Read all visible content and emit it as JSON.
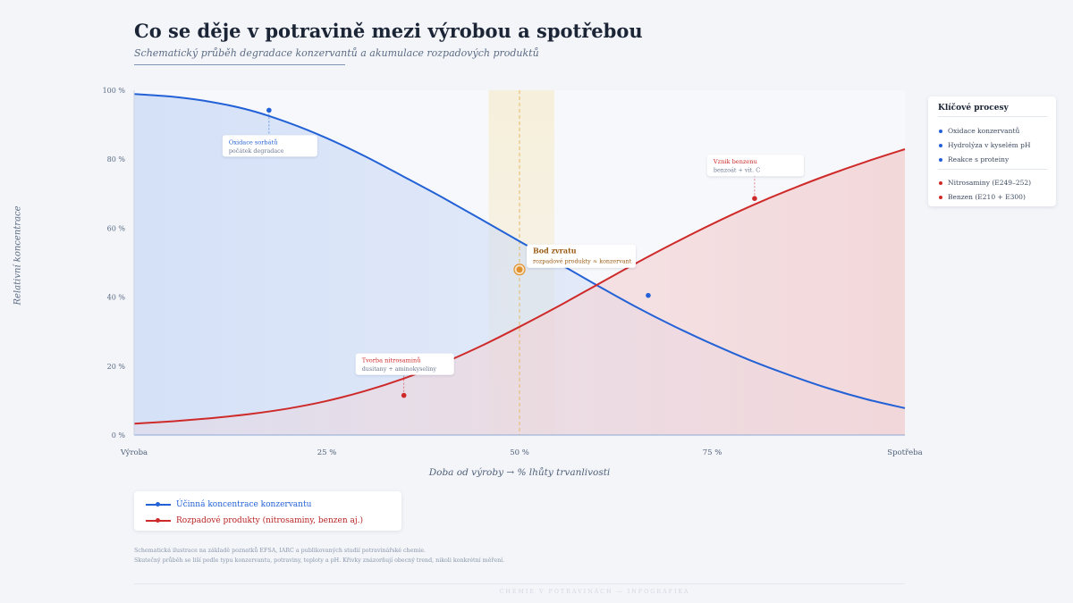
{
  "title": "Co se děje v potravině mezi výrobou a spotřebou",
  "subtitle": "Schematický průběh degradace konzervantů a akumulace rozpadových produktů",
  "colors": {
    "blue": "#2361d6",
    "red": "#cf2a2a",
    "orange": "#e0912d",
    "axis": "#8ea6d4"
  },
  "chart_data": {
    "type": "line",
    "xlabel": "Doba od výroby → % lhůty trvanlivosti",
    "ylabel": "Relativní koncentrace",
    "xlim": [
      0,
      100
    ],
    "ylim": [
      0,
      100
    ],
    "x_ticks": [
      {
        "x": 0,
        "label": "Výroba"
      },
      {
        "x": 25,
        "label": "25 %"
      },
      {
        "x": 50,
        "label": "50 %"
      },
      {
        "x": 75,
        "label": "75 %"
      },
      {
        "x": 100,
        "label": "Spotřeba"
      }
    ],
    "y_ticks": [
      {
        "y": 0,
        "label": "0 %"
      },
      {
        "y": 20,
        "label": "20 %"
      },
      {
        "y": 40,
        "label": "40 %"
      },
      {
        "y": 60,
        "label": "60 %"
      },
      {
        "y": 80,
        "label": "80 %"
      },
      {
        "y": 100,
        "label": "100 %"
      }
    ],
    "highlight_band": [
      46,
      54.5
    ],
    "series": [
      {
        "name": "Účinná koncentrace konzervantu",
        "color": "#2361d6",
        "x": [
          0,
          5,
          10,
          15,
          20,
          25,
          30,
          35,
          40,
          45,
          50,
          55,
          60,
          65,
          70,
          75,
          80,
          85,
          90,
          95,
          100
        ],
        "y": [
          98.9,
          98.1,
          96.6,
          94.2,
          90.6,
          86.1,
          80.8,
          74.9,
          68.9,
          62.6,
          56.2,
          49.9,
          43.5,
          37.3,
          31.6,
          26.4,
          21.6,
          17.4,
          13.6,
          10.4,
          7.8
        ]
      },
      {
        "name": "Rozpadové produkty (nitrosaminy, benzen aj.)",
        "color": "#cf2a2a",
        "x": [
          0,
          5,
          10,
          15,
          20,
          25,
          30,
          35,
          40,
          45,
          50,
          55,
          60,
          65,
          70,
          75,
          80,
          85,
          90,
          95,
          100
        ],
        "y": [
          3.3,
          4.0,
          4.9,
          6.1,
          7.7,
          9.9,
          12.8,
          16.4,
          20.8,
          25.8,
          31.4,
          37.3,
          43.5,
          49.7,
          55.6,
          61.2,
          66.4,
          71.1,
          75.4,
          79.3,
          82.9
        ]
      }
    ],
    "annotations": [
      {
        "title": "Oxidace sorbátů",
        "text": "počátek degradace",
        "series": 0,
        "x": 17.5,
        "y": 94.2
      },
      {
        "title": "Vznik benzenu",
        "text": "benzoát + vit. C",
        "series": 1,
        "x": 80.5,
        "y": 68.6
      },
      {
        "title": "Tvorba nitrosaminů",
        "text": "dusitany + aminokyseliny",
        "series": 1,
        "x": 35,
        "y": 11.5
      },
      {
        "title": "Bod zvratu",
        "text": "rozpadové produkty ≈ konzervant",
        "series": -1,
        "x": 50,
        "y": 48
      }
    ],
    "extra_markers": [
      {
        "series": 0,
        "x": 66.7,
        "y": 40.5
      }
    ]
  },
  "side_panel": {
    "title": "Klíčové procesy",
    "items": [
      {
        "label": "Oxidace konzervantů",
        "color": "#2361d6"
      },
      {
        "label": "Hydrolýza v kyselém pH",
        "color": "#2361d6"
      },
      {
        "label": "Reakce s proteiny",
        "color": "#2361d6"
      },
      {
        "label": "Nitrosaminy (E249–252)",
        "color": "#cf2a2a"
      },
      {
        "label": "Benzen (E210 + E300)",
        "color": "#cf2a2a"
      }
    ]
  },
  "legend": [
    {
      "label": "Účinná koncentrace konzervantu",
      "color": "#2361d6"
    },
    {
      "label": "Rozpadové produkty (nitrosaminy, benzen aj.)",
      "color": "#cf2a2a"
    }
  ],
  "footnote": {
    "line1": "Schematická ilustrace na základě poznatků EFSA, IARC a publikovaných studií potravinářské chemie.",
    "line2": "Skutečný průběh se liší podle typu konzervantu, potraviny, teploty a pH. Křivky znázorňují obecný trend, nikoli konkrétní měření."
  },
  "brand": "CHEMIE V POTRAVINÁCH — INFOGRAFIKA"
}
